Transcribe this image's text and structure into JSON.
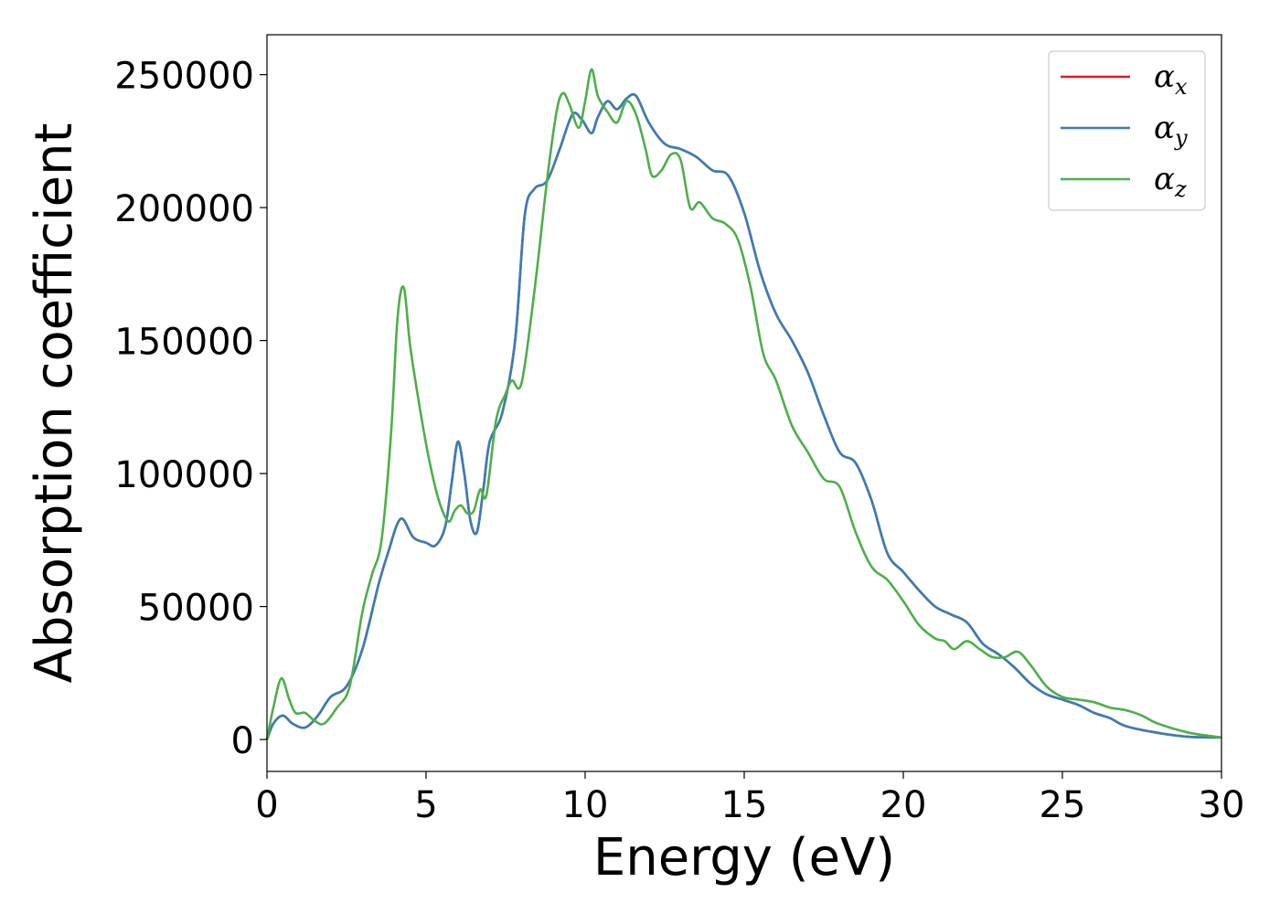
{
  "chart_data": {
    "type": "line",
    "xlabel": "Energy (eV)",
    "ylabel": "Absorption coefficient",
    "xlim": [
      0,
      30
    ],
    "ylim": [
      -12000,
      265000
    ],
    "xticks": [
      "0",
      "5",
      "10",
      "15",
      "20",
      "25",
      "30"
    ],
    "yticks": [
      "0",
      "50000",
      "100000",
      "150000",
      "200000",
      "250000"
    ],
    "grid": false,
    "legend_position": "top-right",
    "series": [
      {
        "name": "α_x",
        "legend_base": "α",
        "legend_sub": "x",
        "color": "#e41a1c",
        "x": [
          0,
          0.2,
          0.5,
          0.8,
          1.2,
          1.6,
          2.0,
          2.5,
          3.0,
          3.5,
          3.8,
          4.2,
          4.6,
          5.0,
          5.3,
          5.6,
          5.8,
          6.0,
          6.2,
          6.4,
          6.6,
          6.8,
          7.0,
          7.4,
          7.8,
          8.1,
          8.4,
          8.8,
          9.2,
          9.6,
          9.9,
          10.2,
          10.4,
          10.7,
          11.0,
          11.3,
          11.6,
          12.0,
          12.5,
          13.0,
          13.5,
          14.0,
          14.5,
          15.0,
          15.5,
          16.0,
          16.5,
          17.0,
          17.5,
          18.0,
          18.5,
          19.0,
          19.5,
          20.0,
          20.5,
          21.0,
          21.5,
          22.0,
          22.5,
          23.0,
          23.5,
          24.0,
          24.5,
          25.0,
          25.5,
          26.0,
          26.5,
          27.0,
          28.0,
          29.0,
          30.0
        ],
        "y": [
          0,
          6000,
          9000,
          6000,
          4500,
          9000,
          16000,
          20000,
          34000,
          58000,
          70000,
          83000,
          76000,
          74000,
          73000,
          80000,
          96000,
          112000,
          100000,
          82000,
          78000,
          94000,
          112000,
          123000,
          150000,
          197000,
          207000,
          210000,
          222000,
          235000,
          233000,
          228000,
          234000,
          240000,
          237000,
          241000,
          242000,
          232000,
          224000,
          222000,
          219000,
          214000,
          212000,
          198000,
          176000,
          160000,
          150000,
          138000,
          122000,
          108000,
          104000,
          90000,
          70000,
          63000,
          56000,
          50000,
          47000,
          44000,
          36000,
          32000,
          27000,
          21000,
          17000,
          15000,
          13000,
          10000,
          8000,
          5000,
          2500,
          1000,
          800
        ]
      },
      {
        "name": "α_y",
        "legend_base": "α",
        "legend_sub": "y",
        "color": "#377eb8",
        "x": [
          0,
          0.2,
          0.5,
          0.8,
          1.2,
          1.6,
          2.0,
          2.5,
          3.0,
          3.5,
          3.8,
          4.2,
          4.6,
          5.0,
          5.3,
          5.6,
          5.8,
          6.0,
          6.2,
          6.4,
          6.6,
          6.8,
          7.0,
          7.4,
          7.8,
          8.1,
          8.4,
          8.8,
          9.2,
          9.6,
          9.9,
          10.2,
          10.4,
          10.7,
          11.0,
          11.3,
          11.6,
          12.0,
          12.5,
          13.0,
          13.5,
          14.0,
          14.5,
          15.0,
          15.5,
          16.0,
          16.5,
          17.0,
          17.5,
          18.0,
          18.5,
          19.0,
          19.5,
          20.0,
          20.5,
          21.0,
          21.5,
          22.0,
          22.5,
          23.0,
          23.5,
          24.0,
          24.5,
          25.0,
          25.5,
          26.0,
          26.5,
          27.0,
          28.0,
          29.0,
          30.0
        ],
        "y": [
          0,
          6000,
          9000,
          6000,
          4500,
          9000,
          16000,
          20000,
          34000,
          58000,
          70000,
          83000,
          76000,
          74000,
          73000,
          80000,
          96000,
          112000,
          100000,
          82000,
          78000,
          94000,
          112000,
          123000,
          150000,
          197000,
          207000,
          210000,
          222000,
          235000,
          233000,
          228000,
          234000,
          240000,
          237000,
          241000,
          242000,
          232000,
          224000,
          222000,
          219000,
          214000,
          212000,
          198000,
          176000,
          160000,
          150000,
          138000,
          122000,
          108000,
          104000,
          90000,
          70000,
          63000,
          56000,
          50000,
          47000,
          44000,
          36000,
          32000,
          27000,
          21000,
          17000,
          15000,
          13000,
          10000,
          8000,
          5000,
          2500,
          1000,
          800
        ]
      },
      {
        "name": "α_z",
        "legend_base": "α",
        "legend_sub": "z",
        "color": "#4daf4a",
        "x": [
          0,
          0.2,
          0.45,
          0.7,
          0.9,
          1.2,
          1.5,
          1.8,
          2.2,
          2.6,
          3.0,
          3.3,
          3.6,
          3.9,
          4.1,
          4.3,
          4.5,
          4.8,
          5.1,
          5.4,
          5.7,
          5.9,
          6.1,
          6.3,
          6.5,
          6.7,
          6.9,
          7.2,
          7.5,
          7.7,
          8.0,
          8.4,
          8.8,
          9.1,
          9.3,
          9.5,
          9.8,
          10.0,
          10.2,
          10.4,
          10.7,
          11.0,
          11.3,
          11.6,
          11.9,
          12.1,
          12.4,
          12.7,
          13.0,
          13.3,
          13.6,
          14.0,
          14.4,
          14.8,
          15.2,
          15.6,
          16.0,
          16.5,
          17.0,
          17.5,
          18.0,
          18.5,
          19.0,
          19.5,
          20.0,
          20.5,
          21.0,
          21.3,
          21.6,
          22.0,
          22.4,
          22.8,
          23.2,
          23.6,
          24.0,
          24.5,
          25.0,
          25.5,
          26.0,
          26.5,
          27.0,
          27.5,
          28.0,
          29.0,
          30.0
        ],
        "y": [
          0,
          12000,
          23000,
          15000,
          10000,
          10000,
          7000,
          6000,
          12000,
          20000,
          48000,
          62000,
          75000,
          115000,
          158000,
          170000,
          148000,
          125000,
          105000,
          90000,
          82000,
          86000,
          88000,
          85000,
          86000,
          94000,
          92000,
          120000,
          130000,
          135000,
          134000,
          168000,
          210000,
          236000,
          243000,
          239000,
          230000,
          240000,
          252000,
          242000,
          236000,
          232000,
          240000,
          235000,
          222000,
          212000,
          214000,
          220000,
          218000,
          200000,
          202000,
          196000,
          194000,
          188000,
          170000,
          145000,
          135000,
          118000,
          108000,
          98000,
          95000,
          78000,
          65000,
          60000,
          52000,
          43000,
          38000,
          37000,
          34000,
          37000,
          34000,
          31000,
          31000,
          33000,
          28000,
          20000,
          16000,
          15000,
          14000,
          12000,
          11000,
          9000,
          6000,
          2500,
          800
        ]
      }
    ]
  }
}
